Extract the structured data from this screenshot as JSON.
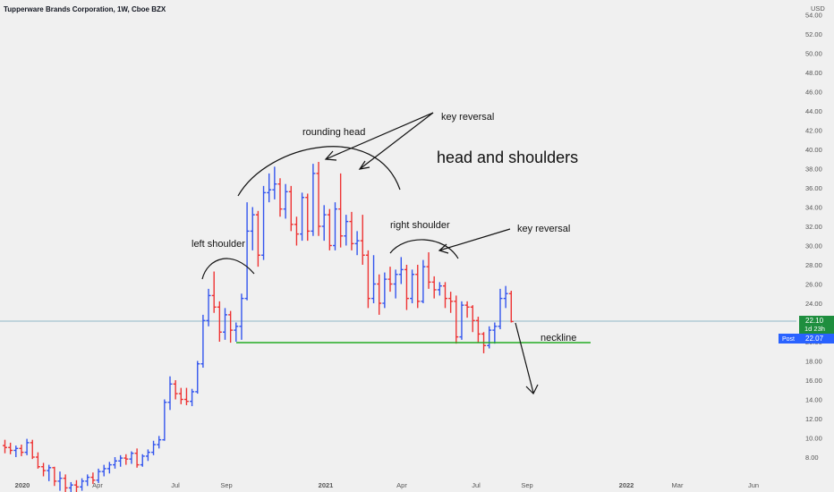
{
  "header": {
    "title": "Tupperware Brands Corporation, 1W, Cboe BZX",
    "currency": "USD"
  },
  "price_badges": {
    "last": "22.10",
    "countdown": "1d 23h",
    "post_label": "Post",
    "post_value": "22.07"
  },
  "annotations": {
    "rounding_head": "rounding head",
    "key_reversal_top": "key reversal",
    "headline": "head and shoulders",
    "left_shoulder": "left shoulder",
    "right_shoulder": "right shoulder",
    "key_reversal_right": "key reversal",
    "neckline": "neckline"
  },
  "colors": {
    "up": "#3355ee",
    "down": "#ee3333",
    "neckline": "#22aa22",
    "last_price": "#1e8e3e",
    "post_badge": "#2962ff",
    "background": "#f0f0f0"
  },
  "chart_data": {
    "type": "ohlc",
    "title": "Tupperware Brands Corporation, 1W, Cboe BZX",
    "y_axis": {
      "unit": "USD",
      "ylim": [
        6.4,
        55
      ],
      "ticks": [
        "8.00",
        "10.00",
        "12.00",
        "14.00",
        "16.00",
        "18.00",
        "20.00",
        "22.00",
        "24.00",
        "26.00",
        "28.00",
        "30.00",
        "32.00",
        "34.00",
        "36.00",
        "38.00",
        "40.00",
        "42.00",
        "44.00",
        "46.00",
        "48.00",
        "50.00",
        "52.00",
        "54.00"
      ]
    },
    "x_axis": {
      "ticks": [
        "2020",
        "Apr",
        "Jul",
        "Sep",
        "2021",
        "Apr",
        "Jul",
        "Sep",
        "2022",
        "Mar",
        "Jun"
      ]
    },
    "neckline": 19.8,
    "last_price": 22.1,
    "post_price": 22.07,
    "bars": [
      {
        "o": 9.2,
        "h": 9.8,
        "l": 8.4,
        "c": 9.0
      },
      {
        "o": 9.0,
        "h": 9.5,
        "l": 8.3,
        "c": 8.7
      },
      {
        "o": 8.7,
        "h": 9.2,
        "l": 8.0,
        "c": 8.9
      },
      {
        "o": 8.9,
        "h": 9.3,
        "l": 8.1,
        "c": 8.5
      },
      {
        "o": 8.5,
        "h": 9.9,
        "l": 8.2,
        "c": 9.5
      },
      {
        "o": 9.5,
        "h": 9.8,
        "l": 7.8,
        "c": 8.0
      },
      {
        "o": 8.0,
        "h": 8.5,
        "l": 6.8,
        "c": 7.0
      },
      {
        "o": 7.0,
        "h": 7.4,
        "l": 6.0,
        "c": 6.6
      },
      {
        "o": 6.6,
        "h": 7.2,
        "l": 5.5,
        "c": 6.9
      },
      {
        "o": 6.9,
        "h": 7.0,
        "l": 5.0,
        "c": 5.5
      },
      {
        "o": 5.5,
        "h": 6.5,
        "l": 4.5,
        "c": 5.8
      },
      {
        "o": 5.8,
        "h": 6.2,
        "l": 4.2,
        "c": 4.8
      },
      {
        "o": 4.8,
        "h": 5.4,
        "l": 4.0,
        "c": 5.1
      },
      {
        "o": 5.1,
        "h": 5.6,
        "l": 4.3,
        "c": 4.9
      },
      {
        "o": 4.9,
        "h": 5.8,
        "l": 4.5,
        "c": 5.5
      },
      {
        "o": 5.5,
        "h": 6.2,
        "l": 5.0,
        "c": 5.9
      },
      {
        "o": 5.9,
        "h": 6.4,
        "l": 5.2,
        "c": 5.6
      },
      {
        "o": 5.6,
        "h": 6.8,
        "l": 5.3,
        "c": 6.5
      },
      {
        "o": 6.5,
        "h": 7.2,
        "l": 6.0,
        "c": 6.8
      },
      {
        "o": 6.8,
        "h": 7.5,
        "l": 6.3,
        "c": 7.2
      },
      {
        "o": 7.2,
        "h": 8.0,
        "l": 6.8,
        "c": 7.6
      },
      {
        "o": 7.6,
        "h": 8.2,
        "l": 7.0,
        "c": 7.9
      },
      {
        "o": 7.9,
        "h": 8.3,
        "l": 7.2,
        "c": 7.8
      },
      {
        "o": 7.8,
        "h": 8.6,
        "l": 7.3,
        "c": 8.4
      },
      {
        "o": 8.4,
        "h": 8.9,
        "l": 6.9,
        "c": 7.2
      },
      {
        "o": 7.2,
        "h": 8.3,
        "l": 7.0,
        "c": 8.1
      },
      {
        "o": 8.1,
        "h": 8.8,
        "l": 7.6,
        "c": 8.5
      },
      {
        "o": 8.5,
        "h": 9.7,
        "l": 8.2,
        "c": 9.3
      },
      {
        "o": 9.3,
        "h": 10.2,
        "l": 8.9,
        "c": 9.8
      },
      {
        "o": 9.8,
        "h": 14.0,
        "l": 9.7,
        "c": 13.7
      },
      {
        "o": 13.7,
        "h": 16.4,
        "l": 12.9,
        "c": 15.6
      },
      {
        "o": 15.6,
        "h": 16.0,
        "l": 14.0,
        "c": 14.6
      },
      {
        "o": 14.6,
        "h": 15.2,
        "l": 13.5,
        "c": 14.0
      },
      {
        "o": 14.0,
        "h": 15.2,
        "l": 13.4,
        "c": 13.8
      },
      {
        "o": 13.8,
        "h": 15.1,
        "l": 13.3,
        "c": 14.8
      },
      {
        "o": 14.8,
        "h": 18.0,
        "l": 14.6,
        "c": 17.7
      },
      {
        "o": 17.7,
        "h": 22.8,
        "l": 17.3,
        "c": 22.2
      },
      {
        "o": 22.2,
        "h": 25.5,
        "l": 21.6,
        "c": 24.8
      },
      {
        "o": 24.8,
        "h": 27.3,
        "l": 23.0,
        "c": 23.6
      },
      {
        "o": 23.6,
        "h": 24.2,
        "l": 20.0,
        "c": 21.0
      },
      {
        "o": 21.0,
        "h": 23.5,
        "l": 20.2,
        "c": 22.8
      },
      {
        "o": 22.8,
        "h": 23.2,
        "l": 19.9,
        "c": 21.2
      },
      {
        "o": 21.2,
        "h": 22.0,
        "l": 20.0,
        "c": 21.6
      },
      {
        "o": 21.6,
        "h": 25.0,
        "l": 20.2,
        "c": 24.5
      },
      {
        "o": 24.5,
        "h": 34.5,
        "l": 24.3,
        "c": 31.5
      },
      {
        "o": 31.5,
        "h": 34.0,
        "l": 29.5,
        "c": 33.2
      },
      {
        "o": 33.2,
        "h": 33.6,
        "l": 27.8,
        "c": 29.0
      },
      {
        "o": 29.0,
        "h": 36.2,
        "l": 28.5,
        "c": 35.5
      },
      {
        "o": 35.5,
        "h": 37.5,
        "l": 34.5,
        "c": 35.8
      },
      {
        "o": 35.8,
        "h": 38.2,
        "l": 34.8,
        "c": 36.4
      },
      {
        "o": 36.4,
        "h": 37.0,
        "l": 33.0,
        "c": 33.8
      },
      {
        "o": 33.8,
        "h": 36.4,
        "l": 32.8,
        "c": 35.6
      },
      {
        "o": 35.6,
        "h": 36.2,
        "l": 31.5,
        "c": 32.2
      },
      {
        "o": 32.2,
        "h": 33.0,
        "l": 30.0,
        "c": 31.2
      },
      {
        "o": 31.2,
        "h": 35.5,
        "l": 30.5,
        "c": 35.0
      },
      {
        "o": 35.0,
        "h": 35.4,
        "l": 30.5,
        "c": 31.5
      },
      {
        "o": 31.5,
        "h": 38.5,
        "l": 31.0,
        "c": 37.5
      },
      {
        "o": 37.5,
        "h": 38.7,
        "l": 31.0,
        "c": 32.0
      },
      {
        "o": 32.0,
        "h": 34.2,
        "l": 30.5,
        "c": 33.2
      },
      {
        "o": 33.2,
        "h": 33.8,
        "l": 29.5,
        "c": 30.0
      },
      {
        "o": 30.0,
        "h": 34.5,
        "l": 29.5,
        "c": 33.8
      },
      {
        "o": 33.8,
        "h": 37.5,
        "l": 29.8,
        "c": 31.0
      },
      {
        "o": 31.0,
        "h": 33.2,
        "l": 30.0,
        "c": 32.5
      },
      {
        "o": 32.5,
        "h": 33.5,
        "l": 29.5,
        "c": 30.2
      },
      {
        "o": 30.2,
        "h": 31.5,
        "l": 29.0,
        "c": 30.5
      },
      {
        "o": 30.5,
        "h": 33.2,
        "l": 28.0,
        "c": 29.0
      },
      {
        "o": 29.0,
        "h": 29.5,
        "l": 23.5,
        "c": 24.5
      },
      {
        "o": 24.5,
        "h": 29.0,
        "l": 24.0,
        "c": 26.0
      },
      {
        "o": 26.0,
        "h": 27.0,
        "l": 22.8,
        "c": 24.0
      },
      {
        "o": 24.0,
        "h": 27.2,
        "l": 23.5,
        "c": 26.5
      },
      {
        "o": 26.5,
        "h": 27.8,
        "l": 25.2,
        "c": 26.0
      },
      {
        "o": 26.0,
        "h": 27.5,
        "l": 24.5,
        "c": 27.0
      },
      {
        "o": 27.0,
        "h": 28.8,
        "l": 26.0,
        "c": 27.5
      },
      {
        "o": 27.5,
        "h": 28.0,
        "l": 23.3,
        "c": 24.5
      },
      {
        "o": 24.5,
        "h": 27.5,
        "l": 24.0,
        "c": 27.0
      },
      {
        "o": 27.0,
        "h": 28.0,
        "l": 23.5,
        "c": 24.2
      },
      {
        "o": 24.2,
        "h": 28.5,
        "l": 24.0,
        "c": 27.8
      },
      {
        "o": 27.8,
        "h": 29.3,
        "l": 25.5,
        "c": 26.2
      },
      {
        "o": 26.2,
        "h": 26.8,
        "l": 24.5,
        "c": 25.4
      },
      {
        "o": 25.4,
        "h": 26.2,
        "l": 24.8,
        "c": 25.8
      },
      {
        "o": 25.8,
        "h": 26.2,
        "l": 23.5,
        "c": 24.5
      },
      {
        "o": 24.5,
        "h": 25.2,
        "l": 23.0,
        "c": 24.2
      },
      {
        "o": 24.2,
        "h": 24.8,
        "l": 19.8,
        "c": 20.5
      },
      {
        "o": 20.5,
        "h": 24.2,
        "l": 20.2,
        "c": 23.8
      },
      {
        "o": 23.8,
        "h": 24.2,
        "l": 22.5,
        "c": 23.6
      },
      {
        "o": 23.6,
        "h": 23.8,
        "l": 21.0,
        "c": 22.2
      },
      {
        "o": 22.2,
        "h": 22.6,
        "l": 19.9,
        "c": 20.8
      },
      {
        "o": 20.8,
        "h": 21.0,
        "l": 18.8,
        "c": 19.6
      },
      {
        "o": 19.6,
        "h": 21.6,
        "l": 19.3,
        "c": 21.2
      },
      {
        "o": 21.2,
        "h": 22.0,
        "l": 19.8,
        "c": 21.6
      },
      {
        "o": 21.6,
        "h": 25.5,
        "l": 21.3,
        "c": 24.5
      },
      {
        "o": 24.5,
        "h": 25.8,
        "l": 23.5,
        "c": 25.0
      },
      {
        "o": 25.0,
        "h": 25.3,
        "l": 22.0,
        "c": 22.1
      }
    ]
  }
}
